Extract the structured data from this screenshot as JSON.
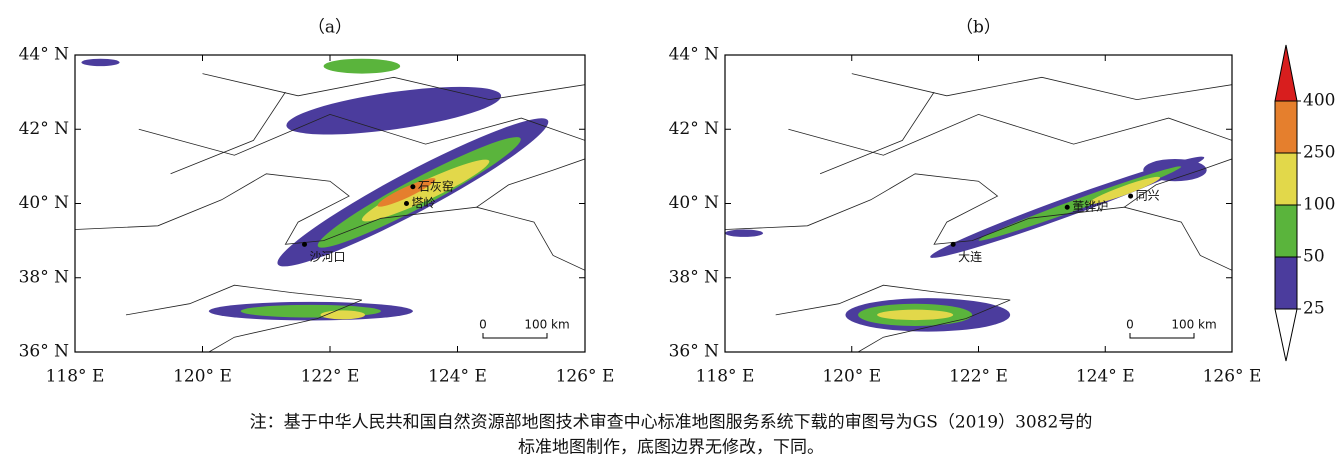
{
  "panels": [
    {
      "label": "（a）",
      "xticks": [
        {
          "value": 118,
          "label": "118° E"
        },
        {
          "value": 120,
          "label": "120° E"
        },
        {
          "value": 122,
          "label": "122° E"
        },
        {
          "value": 124,
          "label": "124° E"
        },
        {
          "value": 126,
          "label": "126° E"
        }
      ],
      "yticks": [
        {
          "value": 36,
          "label": "36° N"
        },
        {
          "value": 38,
          "label": "38° N"
        },
        {
          "value": 40,
          "label": "40° N"
        },
        {
          "value": 42,
          "label": "42° N"
        },
        {
          "value": 44,
          "label": "44° N"
        }
      ],
      "places": [
        "石灰窑",
        "塔岭",
        "沙河口"
      ],
      "scale_bar": {
        "start": "0",
        "end": "100 km"
      }
    },
    {
      "label": "（b）",
      "xticks": [
        {
          "value": 118,
          "label": "118° E"
        },
        {
          "value": 120,
          "label": "120° E"
        },
        {
          "value": 122,
          "label": "122° E"
        },
        {
          "value": 124,
          "label": "124° E"
        },
        {
          "value": 126,
          "label": "126° E"
        }
      ],
      "yticks": [
        {
          "value": 36,
          "label": "36° N"
        },
        {
          "value": 38,
          "label": "38° N"
        },
        {
          "value": 40,
          "label": "40° N"
        },
        {
          "value": 42,
          "label": "42° N"
        },
        {
          "value": 44,
          "label": "44° N"
        }
      ],
      "places": [
        "同兴",
        "董铧炉",
        "大连"
      ],
      "scale_bar": {
        "start": "0",
        "end": "100 km"
      }
    }
  ],
  "colorbar": {
    "ticks": [
      25,
      50,
      100,
      250,
      400
    ],
    "colors": [
      "#ffffff",
      "#4b3c9d",
      "#5ab43c",
      "#e2d84a",
      "#e57f2d",
      "#d81e1e"
    ]
  },
  "note": [
    "注：基于中华人民共和国自然资源部地图技术审查中心标准地图服务系统下载的审图号为GS（2019）3082号的",
    "标准地图制作，底图边界无修改，下同。"
  ]
}
